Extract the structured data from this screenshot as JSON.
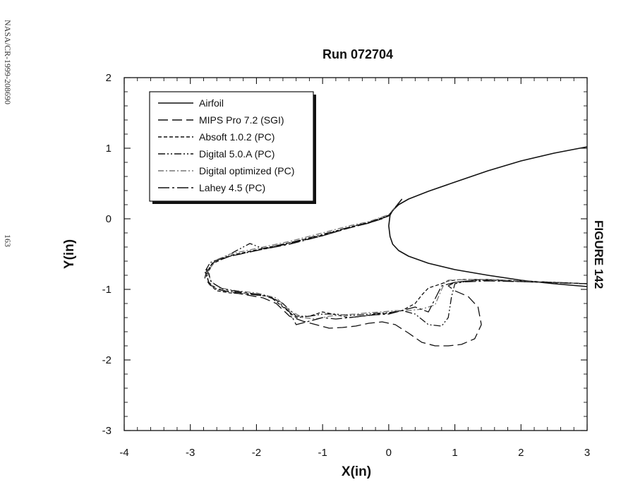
{
  "page": {
    "doc_id": "NASA/CR-1999-208690",
    "page_number": "163",
    "figure_label": "FIGURE 142"
  },
  "chart_data": {
    "type": "line",
    "title": "Run  072704",
    "xlabel": "X(in)",
    "ylabel": "Y(in)",
    "xlim": [
      -4,
      3
    ],
    "ylim": [
      -3,
      2
    ],
    "x_ticks": [
      -4,
      -3,
      -2,
      -1,
      0,
      1,
      2,
      3
    ],
    "y_ticks": [
      -3,
      -2,
      -1,
      0,
      1,
      2
    ],
    "x_tick_labels": [
      "-4",
      "-3",
      "-2",
      "-1",
      "0",
      "1",
      "2",
      "3"
    ],
    "y_tick_labels": [
      "-3",
      "-2",
      "-1",
      "0",
      "1",
      "2"
    ],
    "grid": false,
    "legend_position": "top-left",
    "series": [
      {
        "name": "Airfoil",
        "dash": "solid",
        "color": "#111111",
        "x": [
          3.0,
          2.5,
          2.0,
          1.5,
          1.0,
          0.6,
          0.3,
          0.15,
          0.06,
          0.02,
          0.0,
          0.02,
          0.06,
          0.15,
          0.3,
          0.6,
          1.0,
          1.5,
          2.0,
          2.5,
          3.0
        ],
        "y": [
          1.02,
          0.93,
          0.82,
          0.68,
          0.52,
          0.39,
          0.28,
          0.2,
          0.12,
          0.05,
          -0.1,
          -0.25,
          -0.36,
          -0.45,
          -0.53,
          -0.63,
          -0.72,
          -0.8,
          -0.87,
          -0.92,
          -0.96
        ]
      },
      {
        "name": "MIPS Pro 7.2 (SGI)",
        "dash": "long-dash",
        "color": "#111111",
        "x": [
          0.2,
          0.0,
          -0.1,
          -0.3,
          -0.6,
          -1.0,
          -1.5,
          -2.0,
          -2.4,
          -2.65,
          -2.75,
          -2.78,
          -2.7,
          -2.5,
          -2.2,
          -1.9,
          -1.7,
          -1.5,
          -1.3,
          -1.1,
          -0.9,
          -0.7,
          -0.5,
          -0.3,
          -0.1,
          0.1,
          0.3,
          0.5,
          0.7,
          0.9,
          1.1,
          1.3,
          1.4,
          1.35,
          1.2,
          1.0,
          0.9,
          1.0,
          1.4,
          2.0,
          3.0
        ],
        "y": [
          0.28,
          0.05,
          0.0,
          -0.06,
          -0.13,
          -0.24,
          -0.35,
          -0.45,
          -0.53,
          -0.62,
          -0.72,
          -0.84,
          -0.94,
          -1.02,
          -1.07,
          -1.12,
          -1.2,
          -1.38,
          -1.45,
          -1.5,
          -1.55,
          -1.54,
          -1.52,
          -1.48,
          -1.46,
          -1.5,
          -1.62,
          -1.75,
          -1.8,
          -1.8,
          -1.78,
          -1.7,
          -1.5,
          -1.25,
          -1.1,
          -1.02,
          -0.95,
          -0.9,
          -0.86,
          -0.88,
          -0.92
        ]
      },
      {
        "name": "Absoft 1.0.2 (PC)",
        "dash": "short-dash",
        "color": "#111111",
        "x": [
          0.2,
          0.0,
          -0.3,
          -0.6,
          -1.0,
          -1.5,
          -2.0,
          -2.4,
          -2.65,
          -2.75,
          -2.72,
          -2.6,
          -2.4,
          -2.1,
          -1.8,
          -1.6,
          -1.4,
          -1.2,
          -1.0,
          -0.8,
          -0.6,
          -0.4,
          -0.2,
          0.0,
          0.2,
          0.4,
          0.5,
          0.6,
          0.8,
          0.9,
          1.1,
          1.5,
          2.0,
          3.0
        ],
        "y": [
          0.28,
          0.04,
          -0.05,
          -0.12,
          -0.23,
          -0.34,
          -0.44,
          -0.52,
          -0.63,
          -0.78,
          -0.92,
          -1.02,
          -1.05,
          -1.07,
          -1.1,
          -1.25,
          -1.4,
          -1.38,
          -1.32,
          -1.36,
          -1.4,
          -1.38,
          -1.35,
          -1.34,
          -1.3,
          -1.2,
          -1.08,
          -0.98,
          -0.92,
          -0.88,
          -0.86,
          -0.86,
          -0.88,
          -0.92
        ]
      },
      {
        "name": "Digital 5.0.A (PC)",
        "dash": "dash-dot-dot",
        "color": "#111111",
        "x": [
          0.2,
          0.0,
          -0.3,
          -0.6,
          -1.0,
          -1.5,
          -1.9,
          -2.1,
          -2.3,
          -2.5,
          -2.7,
          -2.78,
          -2.72,
          -2.6,
          -2.4,
          -2.2,
          -2.0,
          -1.8,
          -1.6,
          -1.4,
          -1.2,
          -1.0,
          -0.8,
          -0.6,
          -0.4,
          -0.2,
          0.0,
          0.2,
          0.4,
          0.6,
          0.8,
          0.9,
          0.95,
          1.0,
          1.2,
          1.5,
          2.0,
          3.0
        ],
        "y": [
          0.28,
          0.05,
          -0.05,
          -0.12,
          -0.22,
          -0.34,
          -0.42,
          -0.35,
          -0.45,
          -0.55,
          -0.62,
          -0.75,
          -0.9,
          -1.0,
          -1.03,
          -1.05,
          -1.08,
          -1.1,
          -1.2,
          -1.38,
          -1.38,
          -1.35,
          -1.35,
          -1.37,
          -1.36,
          -1.34,
          -1.33,
          -1.3,
          -1.35,
          -1.5,
          -1.52,
          -1.4,
          -1.1,
          -0.92,
          -0.88,
          -0.87,
          -0.89,
          -0.92
        ]
      },
      {
        "name": "Digital optimized (PC)",
        "dash": "dash-dot",
        "color": "#777777",
        "x": [
          0.2,
          0.0,
          -0.3,
          -0.6,
          -1.0,
          -1.5,
          -2.0,
          -2.4,
          -2.6,
          -2.72,
          -2.7,
          -2.55,
          -2.3,
          -2.0,
          -1.7,
          -1.5,
          -1.3,
          -1.1,
          -0.9,
          -0.7,
          -0.5,
          -0.3,
          -0.1,
          0.1,
          0.3,
          0.5,
          0.7,
          0.8,
          0.85,
          0.9,
          1.2,
          1.5,
          2.0,
          3.0
        ],
        "y": [
          0.28,
          0.06,
          -0.04,
          -0.1,
          -0.2,
          -0.32,
          -0.42,
          -0.5,
          -0.58,
          -0.72,
          -0.88,
          -0.98,
          -1.02,
          -1.05,
          -1.12,
          -1.3,
          -1.4,
          -1.42,
          -1.38,
          -1.36,
          -1.35,
          -1.33,
          -1.32,
          -1.3,
          -1.3,
          -1.28,
          -1.22,
          -1.0,
          -0.9,
          -0.87,
          -0.86,
          -0.86,
          -0.88,
          -0.92
        ]
      },
      {
        "name": "Lahey 4.5 (PC)",
        "dash": "long-dash-dot",
        "color": "#111111",
        "x": [
          0.2,
          0.0,
          -0.3,
          -0.6,
          -1.0,
          -1.5,
          -2.0,
          -2.4,
          -2.65,
          -2.74,
          -2.68,
          -2.5,
          -2.2,
          -1.9,
          -1.7,
          -1.5,
          -1.4,
          -1.2,
          -1.0,
          -0.8,
          -0.6,
          -0.4,
          -0.2,
          0.0,
          0.2,
          0.4,
          0.6,
          0.8,
          1.0,
          1.5,
          2.0,
          3.0
        ],
        "y": [
          0.28,
          0.04,
          -0.06,
          -0.13,
          -0.24,
          -0.36,
          -0.45,
          -0.53,
          -0.6,
          -0.74,
          -0.9,
          -1.0,
          -1.04,
          -1.08,
          -1.15,
          -1.32,
          -1.5,
          -1.45,
          -1.4,
          -1.42,
          -1.4,
          -1.38,
          -1.36,
          -1.35,
          -1.3,
          -1.25,
          -1.32,
          -0.95,
          -0.9,
          -0.88,
          -0.89,
          -0.92
        ]
      }
    ]
  }
}
